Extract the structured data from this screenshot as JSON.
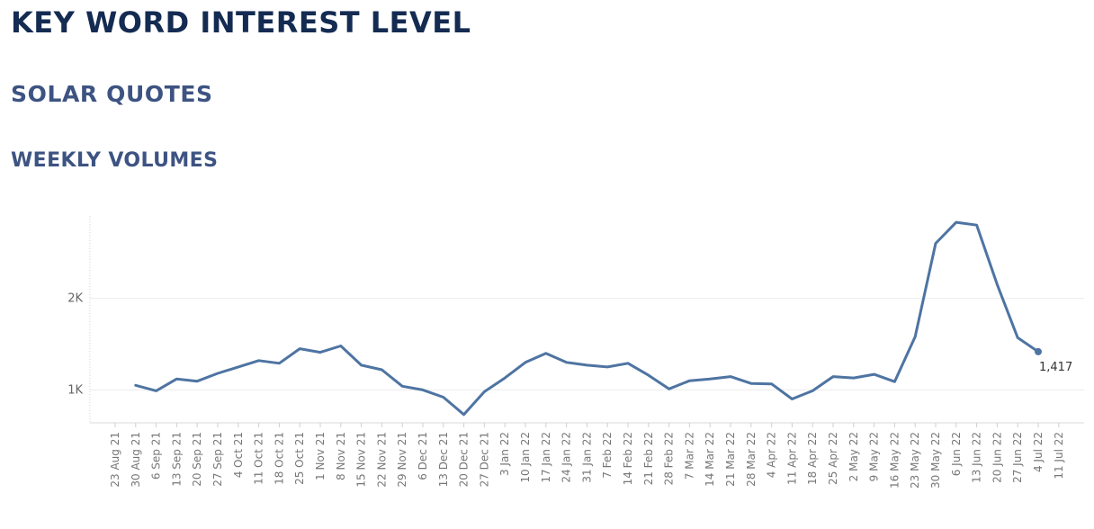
{
  "header": {
    "title": "KEY WORD INTEREST LEVEL",
    "subtitle": "SOLAR QUOTES",
    "section": "WEEKLY VOLUMES"
  },
  "colors": {
    "line": "#4e74a2",
    "title": "#142b52",
    "subtitle": "#3d5382",
    "gridline": "#ececec"
  },
  "chart_data": {
    "type": "line",
    "title": "",
    "xlabel": "",
    "ylabel": "",
    "grid": true,
    "ylim": [
      640,
      2900
    ],
    "y_ticks": [
      1000,
      2000
    ],
    "y_tick_labels": [
      "1K",
      "2K"
    ],
    "categories": [
      "23 Aug 21",
      "30 Aug 21",
      "6 Sep 21",
      "13 Sep 21",
      "20 Sep 21",
      "27 Sep 21",
      "4 Oct 21",
      "11 Oct 21",
      "18 Oct 21",
      "25 Oct 21",
      "1 Nov 21",
      "8 Nov 21",
      "15 Nov 21",
      "22 Nov 21",
      "29 Nov 21",
      "6 Dec 21",
      "13 Dec 21",
      "20 Dec 21",
      "27 Dec 21",
      "3 Jan 22",
      "10 Jan 22",
      "17 Jan 22",
      "24 Jan 22",
      "31 Jan 22",
      "7 Feb 22",
      "14 Feb 22",
      "21 Feb 22",
      "28 Feb 22",
      "7 Mar 22",
      "14 Mar 22",
      "21 Mar 22",
      "28 Mar 22",
      "4 Apr 22",
      "11 Apr 22",
      "18 Apr 22",
      "25 Apr 22",
      "2 May 22",
      "9 May 22",
      "16 May 22",
      "23 May 22",
      "30 May 22",
      "6 Jun 22",
      "13 Jun 22",
      "20 Jun 22",
      "27 Jun 22",
      "4 Jul 22",
      "11 Jul 22"
    ],
    "series": [
      {
        "values": [
          null,
          1050,
          990,
          1120,
          1095,
          1180,
          1250,
          1320,
          1290,
          1450,
          1410,
          1480,
          1270,
          1220,
          1040,
          1000,
          920,
          730,
          980,
          1130,
          1300,
          1400,
          1300,
          1270,
          1250,
          1290,
          1160,
          1010,
          1100,
          1120,
          1145,
          1070,
          1065,
          900,
          990,
          1145,
          1130,
          1170,
          1090,
          1580,
          2600,
          2830,
          2800,
          2150,
          1570,
          1417,
          null
        ]
      }
    ],
    "data_labels": [
      {
        "category": "4 Jul 22",
        "value": 1417,
        "text": "1,417"
      }
    ]
  }
}
